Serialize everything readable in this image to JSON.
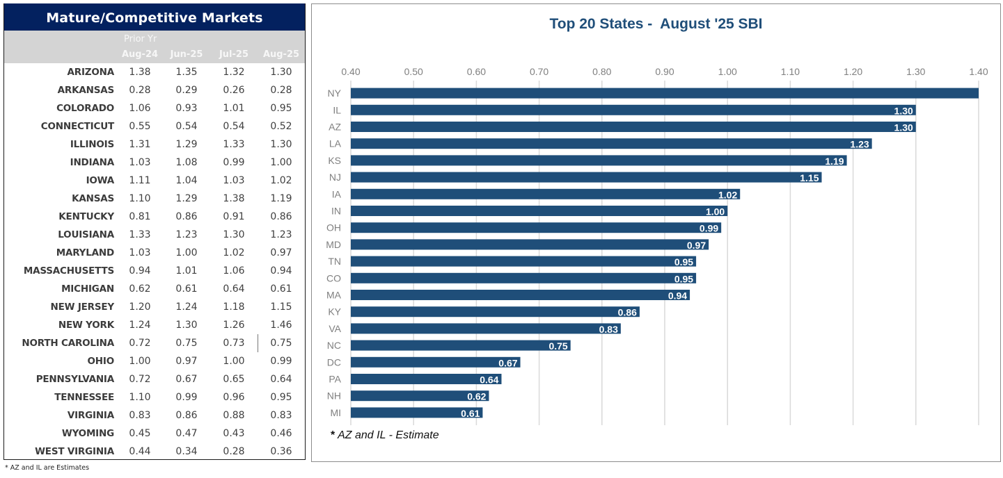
{
  "table": {
    "title": "Mature/Competitive Markets",
    "prior_label": "Prior Yr",
    "columns": [
      "Aug-24",
      "Jun-25",
      "Jul-25",
      "Aug-25"
    ],
    "rows": [
      {
        "state": "ARIZONA",
        "values": [
          "1.38",
          "1.35",
          "1.32",
          "1.30"
        ]
      },
      {
        "state": "ARKANSAS",
        "values": [
          "0.28",
          "0.29",
          "0.26",
          "0.28"
        ]
      },
      {
        "state": "COLORADO",
        "values": [
          "1.06",
          "0.93",
          "1.01",
          "0.95"
        ]
      },
      {
        "state": "CONNECTICUT",
        "values": [
          "0.55",
          "0.54",
          "0.54",
          "0.52"
        ]
      },
      {
        "state": "ILLINOIS",
        "values": [
          "1.31",
          "1.29",
          "1.33",
          "1.30"
        ]
      },
      {
        "state": "INDIANA",
        "values": [
          "1.03",
          "1.08",
          "0.99",
          "1.00"
        ]
      },
      {
        "state": "IOWA",
        "values": [
          "1.11",
          "1.04",
          "1.03",
          "1.02"
        ]
      },
      {
        "state": "KANSAS",
        "values": [
          "1.10",
          "1.29",
          "1.38",
          "1.19"
        ]
      },
      {
        "state": "KENTUCKY",
        "values": [
          "0.81",
          "0.86",
          "0.91",
          "0.86"
        ]
      },
      {
        "state": "LOUISIANA",
        "values": [
          "1.33",
          "1.23",
          "1.30",
          "1.23"
        ]
      },
      {
        "state": "MARYLAND",
        "values": [
          "1.03",
          "1.00",
          "1.02",
          "0.97"
        ]
      },
      {
        "state": "MASSACHUSETTS",
        "values": [
          "0.94",
          "1.01",
          "1.06",
          "0.94"
        ]
      },
      {
        "state": "MICHIGAN",
        "values": [
          "0.62",
          "0.61",
          "0.64",
          "0.61"
        ]
      },
      {
        "state": "NEW JERSEY",
        "values": [
          "1.20",
          "1.24",
          "1.18",
          "1.15"
        ]
      },
      {
        "state": "NEW YORK",
        "values": [
          "1.24",
          "1.30",
          "1.26",
          "1.46"
        ]
      },
      {
        "state": "NORTH CAROLINA",
        "values": [
          "0.72",
          "0.75",
          "0.73",
          "0.75"
        ]
      },
      {
        "state": "OHIO",
        "values": [
          "1.00",
          "0.97",
          "1.00",
          "0.99"
        ]
      },
      {
        "state": "PENNSYLVANIA",
        "values": [
          "0.72",
          "0.67",
          "0.65",
          "0.64"
        ]
      },
      {
        "state": "TENNESSEE",
        "values": [
          "1.10",
          "0.99",
          "0.96",
          "0.95"
        ]
      },
      {
        "state": "VIRGINIA",
        "values": [
          "0.83",
          "0.86",
          "0.88",
          "0.83"
        ]
      },
      {
        "state": "WYOMING",
        "values": [
          "0.45",
          "0.47",
          "0.43",
          "0.46"
        ]
      },
      {
        "state": "WEST VIRGINIA",
        "values": [
          "0.44",
          "0.34",
          "0.28",
          "0.36"
        ]
      }
    ],
    "footnote": "* AZ and IL are Estimates"
  },
  "chart_data": {
    "type": "bar",
    "orientation": "horizontal",
    "title": "Top 20 States -  August '25 SBI",
    "xlabel": "",
    "ylabel": "",
    "xlim": [
      0.4,
      1.4
    ],
    "x_ticks": [
      "0.40",
      "0.50",
      "0.60",
      "0.70",
      "0.80",
      "0.90",
      "1.00",
      "1.10",
      "1.20",
      "1.30",
      "1.40"
    ],
    "grid": true,
    "axis_position": "top",
    "categories": [
      "NY",
      "IL",
      "AZ",
      "LA",
      "KS",
      "NJ",
      "IA",
      "IN",
      "OH",
      "MD",
      "TN",
      "CO",
      "MA",
      "KY",
      "VA",
      "NC",
      "DC",
      "PA",
      "NH",
      "MI"
    ],
    "values": [
      1.46,
      1.3,
      1.3,
      1.23,
      1.19,
      1.15,
      1.02,
      1.0,
      0.99,
      0.97,
      0.95,
      0.95,
      0.94,
      0.86,
      0.83,
      0.75,
      0.67,
      0.64,
      0.62,
      0.61
    ],
    "data_labels": [
      "",
      "1.30",
      "1.30",
      "1.23",
      "1.19",
      "1.15",
      "1.02",
      "1.00",
      "0.99",
      "0.97",
      "0.95",
      "0.95",
      "0.94",
      "0.86",
      "0.83",
      "0.75",
      "0.67",
      "0.64",
      "0.62",
      "0.61"
    ],
    "bar_color": "#1f4e79",
    "footnote_mark": "*",
    "footnote": " AZ and IL - Estimate"
  }
}
